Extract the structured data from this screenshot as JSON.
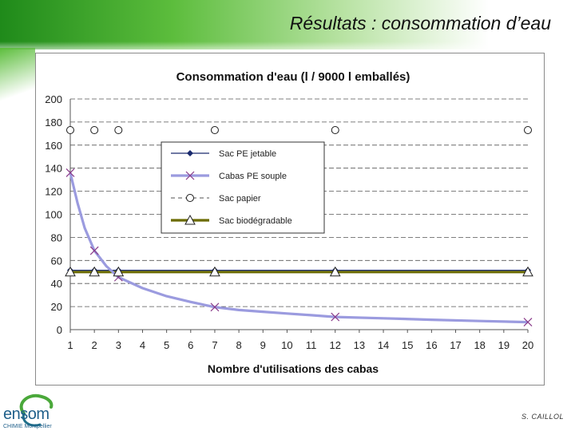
{
  "slide": {
    "title": "Résultats : consommation d’eau",
    "credit": "S. CAILLOL"
  },
  "logo": {
    "name": "ensom",
    "tagline": "CHIMIE Montpellier"
  },
  "chart_data": {
    "type": "line",
    "title": "Consommation d'eau (l / 9000 l emballés)",
    "xlabel": "Nombre d'utilisations des cabas",
    "ylabel": "",
    "x": [
      1,
      2,
      3,
      4,
      5,
      6,
      7,
      8,
      9,
      10,
      11,
      12,
      13,
      14,
      15,
      16,
      17,
      18,
      19,
      20
    ],
    "ylim": [
      0,
      200
    ],
    "yticks": [
      0,
      20,
      40,
      60,
      80,
      100,
      120,
      140,
      160,
      180,
      200
    ],
    "legend_position": "upper-center",
    "series": [
      {
        "name": "Sac PE jetable",
        "color": "#1a2a6e",
        "marker": "diamond",
        "line": "solid-thin",
        "points": [
          [
            1,
            51.5
          ],
          [
            2,
            51.5
          ],
          [
            3,
            51.5
          ],
          [
            7,
            51.5
          ],
          [
            12,
            51.5
          ],
          [
            20,
            51.5
          ]
        ]
      },
      {
        "name": "Cabas PE souple",
        "color": "#9b9bdf",
        "marker": "x",
        "marker_color": "#8a3c8a",
        "line": "solid-thick",
        "points": [
          [
            1,
            136
          ],
          [
            2,
            68.5
          ],
          [
            3,
            45.5
          ],
          [
            7,
            19.5
          ],
          [
            12,
            11
          ],
          [
            20,
            6.5
          ]
        ],
        "curve": [
          [
            1,
            136
          ],
          [
            1.3,
            110
          ],
          [
            1.6,
            88
          ],
          [
            2,
            68.5
          ],
          [
            2.5,
            55
          ],
          [
            3,
            45.5
          ],
          [
            4,
            36
          ],
          [
            5,
            29
          ],
          [
            6,
            24
          ],
          [
            7,
            19.5
          ],
          [
            8,
            17
          ],
          [
            9,
            15.5
          ],
          [
            10,
            14
          ],
          [
            11,
            12.5
          ],
          [
            12,
            11
          ],
          [
            14,
            9.8
          ],
          [
            16,
            8.6
          ],
          [
            18,
            7.5
          ],
          [
            20,
            6.5
          ]
        ]
      },
      {
        "name": "Sac papier",
        "color": "#1a1a1a",
        "marker": "circle-open",
        "line": "dashed",
        "points": [
          [
            1,
            173
          ],
          [
            2,
            173
          ],
          [
            3,
            173
          ],
          [
            7,
            173
          ],
          [
            12,
            173
          ],
          [
            20,
            173
          ]
        ]
      },
      {
        "name": "Sac biodégradable",
        "color": "#6b6b00",
        "marker": "triangle-open",
        "line": "solid-thick",
        "points": [
          [
            1,
            50
          ],
          [
            2,
            50
          ],
          [
            3,
            50
          ],
          [
            7,
            50
          ],
          [
            12,
            50
          ],
          [
            20,
            50
          ]
        ]
      }
    ]
  }
}
